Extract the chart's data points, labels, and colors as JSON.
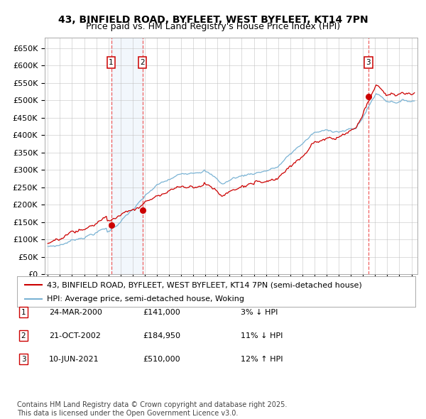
{
  "title": "43, BINFIELD ROAD, BYFLEET, WEST BYFLEET, KT14 7PN",
  "subtitle": "Price paid vs. HM Land Registry's House Price Index (HPI)",
  "ylim": [
    0,
    680000
  ],
  "yticks": [
    0,
    50000,
    100000,
    150000,
    200000,
    250000,
    300000,
    350000,
    400000,
    450000,
    500000,
    550000,
    600000,
    650000
  ],
  "ytick_labels": [
    "£0",
    "£50K",
    "£100K",
    "£150K",
    "£200K",
    "£250K",
    "£300K",
    "£350K",
    "£400K",
    "£450K",
    "£500K",
    "£550K",
    "£600K",
    "£650K"
  ],
  "hpi_color": "#7ab3d4",
  "price_color": "#cc0000",
  "dot_color": "#cc0000",
  "background_color": "#ffffff",
  "plot_bg_color": "#ffffff",
  "grid_color": "#bbbbbb",
  "vspan_color": "#cce0f5",
  "vline_color": "#ee4444",
  "sale_dates": [
    "2000-03-24",
    "2002-10-21",
    "2021-06-10"
  ],
  "sale_prices": [
    141000,
    184950,
    510000
  ],
  "sale_labels": [
    "1",
    "2",
    "3"
  ],
  "legend_red": "43, BINFIELD ROAD, BYFLEET, WEST BYFLEET, KT14 7PN (semi-detached house)",
  "legend_blue": "HPI: Average price, semi-detached house, Woking",
  "transaction_rows": [
    {
      "num": "1",
      "date": "24-MAR-2000",
      "price": "£141,000",
      "hpi": "3% ↓ HPI"
    },
    {
      "num": "2",
      "date": "21-OCT-2002",
      "price": "£184,950",
      "hpi": "11% ↓ HPI"
    },
    {
      "num": "3",
      "date": "10-JUN-2021",
      "price": "£510,000",
      "hpi": "12% ↑ HPI"
    }
  ],
  "footer": "Contains HM Land Registry data © Crown copyright and database right 2025.\nThis data is licensed under the Open Government Licence v3.0.",
  "title_fontsize": 10,
  "subtitle_fontsize": 9,
  "tick_fontsize": 8,
  "legend_fontsize": 8,
  "table_fontsize": 8,
  "footer_fontsize": 7
}
